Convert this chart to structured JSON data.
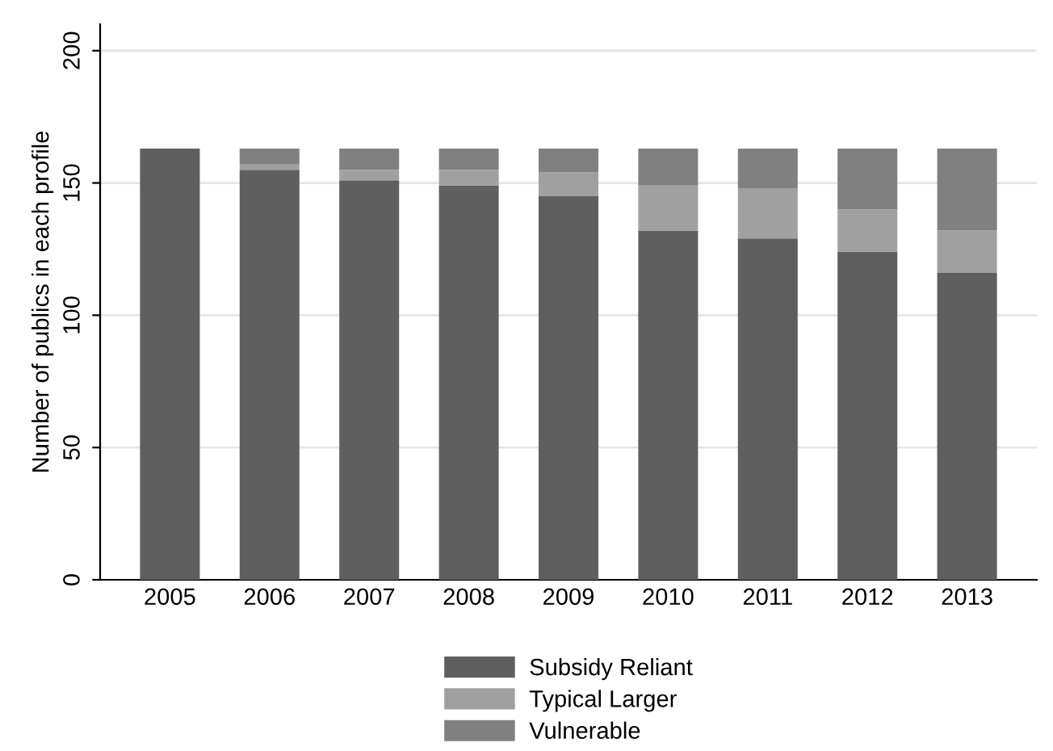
{
  "chart_data": {
    "type": "bar",
    "stacked": true,
    "ylabel": "Number of publics in each profile",
    "categories": [
      "2005",
      "2006",
      "2007",
      "2008",
      "2009",
      "2010",
      "2011",
      "2012",
      "2013"
    ],
    "series": [
      {
        "name": "Subsidy Reliant",
        "color": "#5f5f5f",
        "values": [
          163,
          155,
          151,
          149,
          145,
          132,
          129,
          124,
          116
        ]
      },
      {
        "name": "Typical Larger",
        "color": "#a0a0a0",
        "values": [
          0,
          2,
          4,
          6,
          9,
          17,
          19,
          16,
          16
        ]
      },
      {
        "name": "Vulnerable",
        "color": "#808080",
        "values": [
          0,
          6,
          8,
          8,
          9,
          14,
          15,
          23,
          31
        ]
      }
    ],
    "ylim": [
      0,
      210
    ],
    "yticks": [
      0,
      50,
      100,
      150,
      200
    ],
    "grid": "y",
    "legend": "bottom"
  }
}
